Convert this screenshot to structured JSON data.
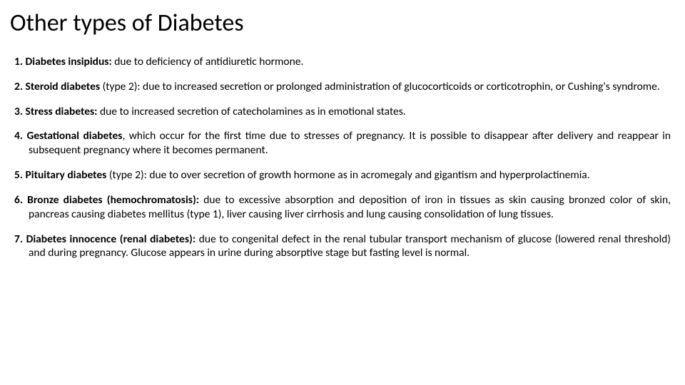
{
  "title": "Other types of Diabetes",
  "items": [
    {
      "num": "1.",
      "term": "Diabetes insipidus:",
      "text": " due to deficiency of antidiuretic hormone."
    },
    {
      "num": "2.",
      "term": "Steroid diabetes",
      "text": " (type 2): due to increased secretion or prolonged administration of glucocorticoids or corticotrophin, or Cushing's syndrome."
    },
    {
      "num": "3.",
      "term": "Stress diabetes:",
      "text": " due to increased secretion of catecholamines as in emotional states."
    },
    {
      "num": "4.",
      "term": "Gestational diabetes",
      "text": ", which occur for the first time due to stresses of pregnancy. It is possible to disappear after delivery and reappear in subsequent pregnancy where it becomes permanent."
    },
    {
      "num": "5.",
      "term": "Pituitary diabetes",
      "text": " (type 2): due to over secretion of growth hormone as in acromegaly and gigantism and hyperprolactinemia."
    },
    {
      "num": "6.",
      "term": "Bronze diabetes (hemochromatosis):",
      "text": " due to excessive absorption and deposition of iron in tissues as skin causing bronzed color of skin, pancreas causing diabetes mellitus (type 1), liver causing liver cirrhosis and lung causing consolidation of lung tissues."
    },
    {
      "num": "7.",
      "term": "Diabetes innocence (renal diabetes):",
      "text": " due to congenital defect in the renal tubular transport mechanism of glucose (lowered renal threshold) and during pregnancy.  Glucose appears in urine during absorptive stage but fasting level is normal."
    }
  ],
  "colors": {
    "background": "#ffffff",
    "text": "#000000"
  },
  "typography": {
    "title_fontsize": 34,
    "body_fontsize": 15.5,
    "font_family": "Calibri"
  }
}
